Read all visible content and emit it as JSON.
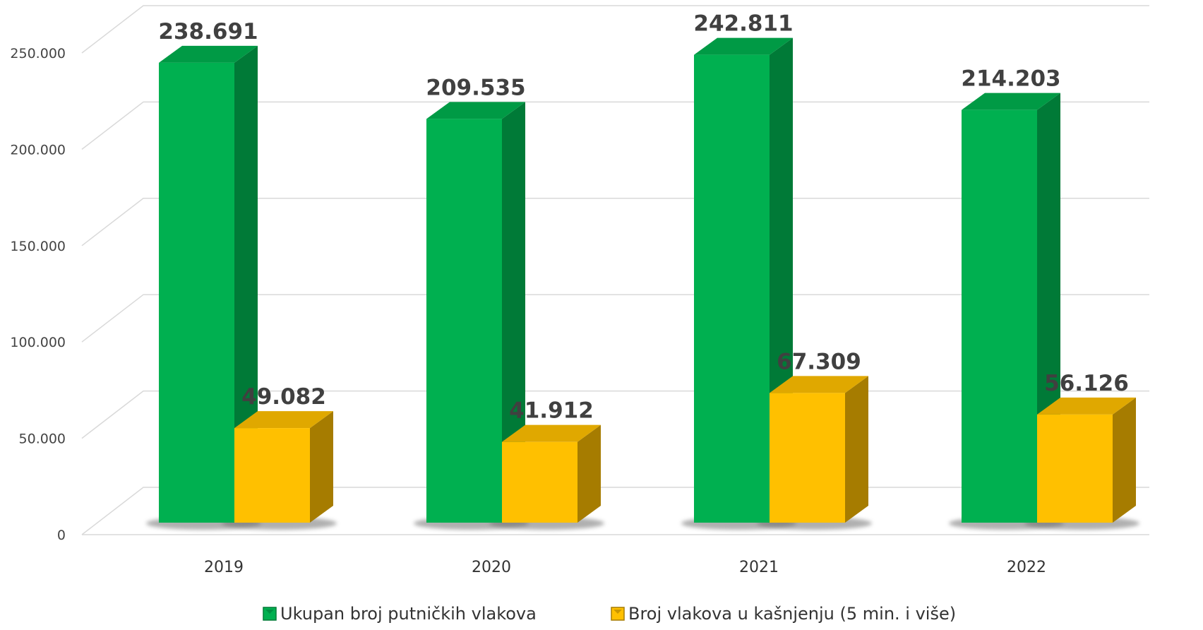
{
  "chart_data": {
    "type": "bar",
    "style": "3d-clustered-column",
    "categories": [
      "2019",
      "2020",
      "2021",
      "2022"
    ],
    "series": [
      {
        "name": "Ukupan broj putničkih vlakova",
        "values": [
          238691,
          209535,
          242811,
          214203
        ],
        "value_labels": [
          "238.691",
          "209.535",
          "242.811",
          "214.203"
        ],
        "color": "#00b050",
        "side_color": "#007a37",
        "top_color": "#009a45"
      },
      {
        "name": "Broj vlakova u kašnjenju (5 min. i više)",
        "values": [
          49082,
          41912,
          67309,
          56126
        ],
        "value_labels": [
          "49.082",
          "41.912",
          "67.309",
          "56.126"
        ],
        "color": "#ffc000",
        "side_color": "#a67c00",
        "top_color": "#e0a800"
      }
    ],
    "ylim": [
      0,
      250000
    ],
    "yticks": [
      0,
      50000,
      100000,
      150000,
      200000,
      250000
    ],
    "ytick_labels": [
      "0",
      "50.000",
      "100.000",
      "150.000",
      "200.000",
      "250.000"
    ],
    "grid": true,
    "legend_position": "bottom",
    "title": "",
    "xlabel": "",
    "ylabel": ""
  }
}
